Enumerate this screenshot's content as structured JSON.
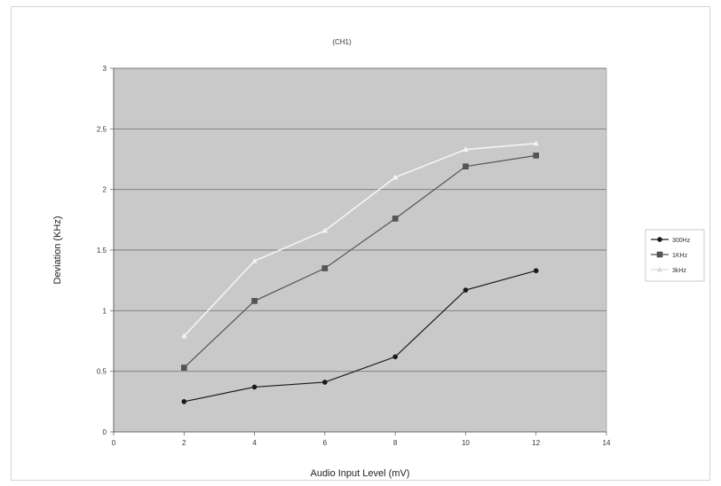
{
  "chart_data": {
    "type": "line",
    "title": "(CH1)",
    "xlabel": "Audio Input Level (mV)",
    "ylabel": "Deviation (KHz)",
    "xlim": [
      0,
      14
    ],
    "ylim": [
      0,
      3
    ],
    "x_ticks": [
      "0",
      "2",
      "4",
      "6",
      "8",
      "10",
      "12",
      "14"
    ],
    "y_ticks": [
      "0",
      "0.5",
      "1",
      "1.5",
      "2",
      "2.5",
      "3"
    ],
    "grid": true,
    "legend_position": "right",
    "x": [
      2,
      4,
      6,
      8,
      10,
      12
    ],
    "series": [
      {
        "name": "300Hz",
        "values": [
          0.25,
          0.37,
          0.41,
          0.62,
          1.17,
          1.33
        ],
        "color": "#1a1a1a",
        "marker": "circle"
      },
      {
        "name": "1KHz",
        "values": [
          0.53,
          1.08,
          1.35,
          1.76,
          2.19,
          2.28
        ],
        "color": "#555555",
        "marker": "square"
      },
      {
        "name": "3kHz",
        "values": [
          0.79,
          1.41,
          1.66,
          2.1,
          2.33,
          2.38
        ],
        "color": "#f4f4f4",
        "marker": "triangle"
      }
    ],
    "plot_background": "#c9c9c9",
    "gridline_color": "#7a7a7a"
  }
}
